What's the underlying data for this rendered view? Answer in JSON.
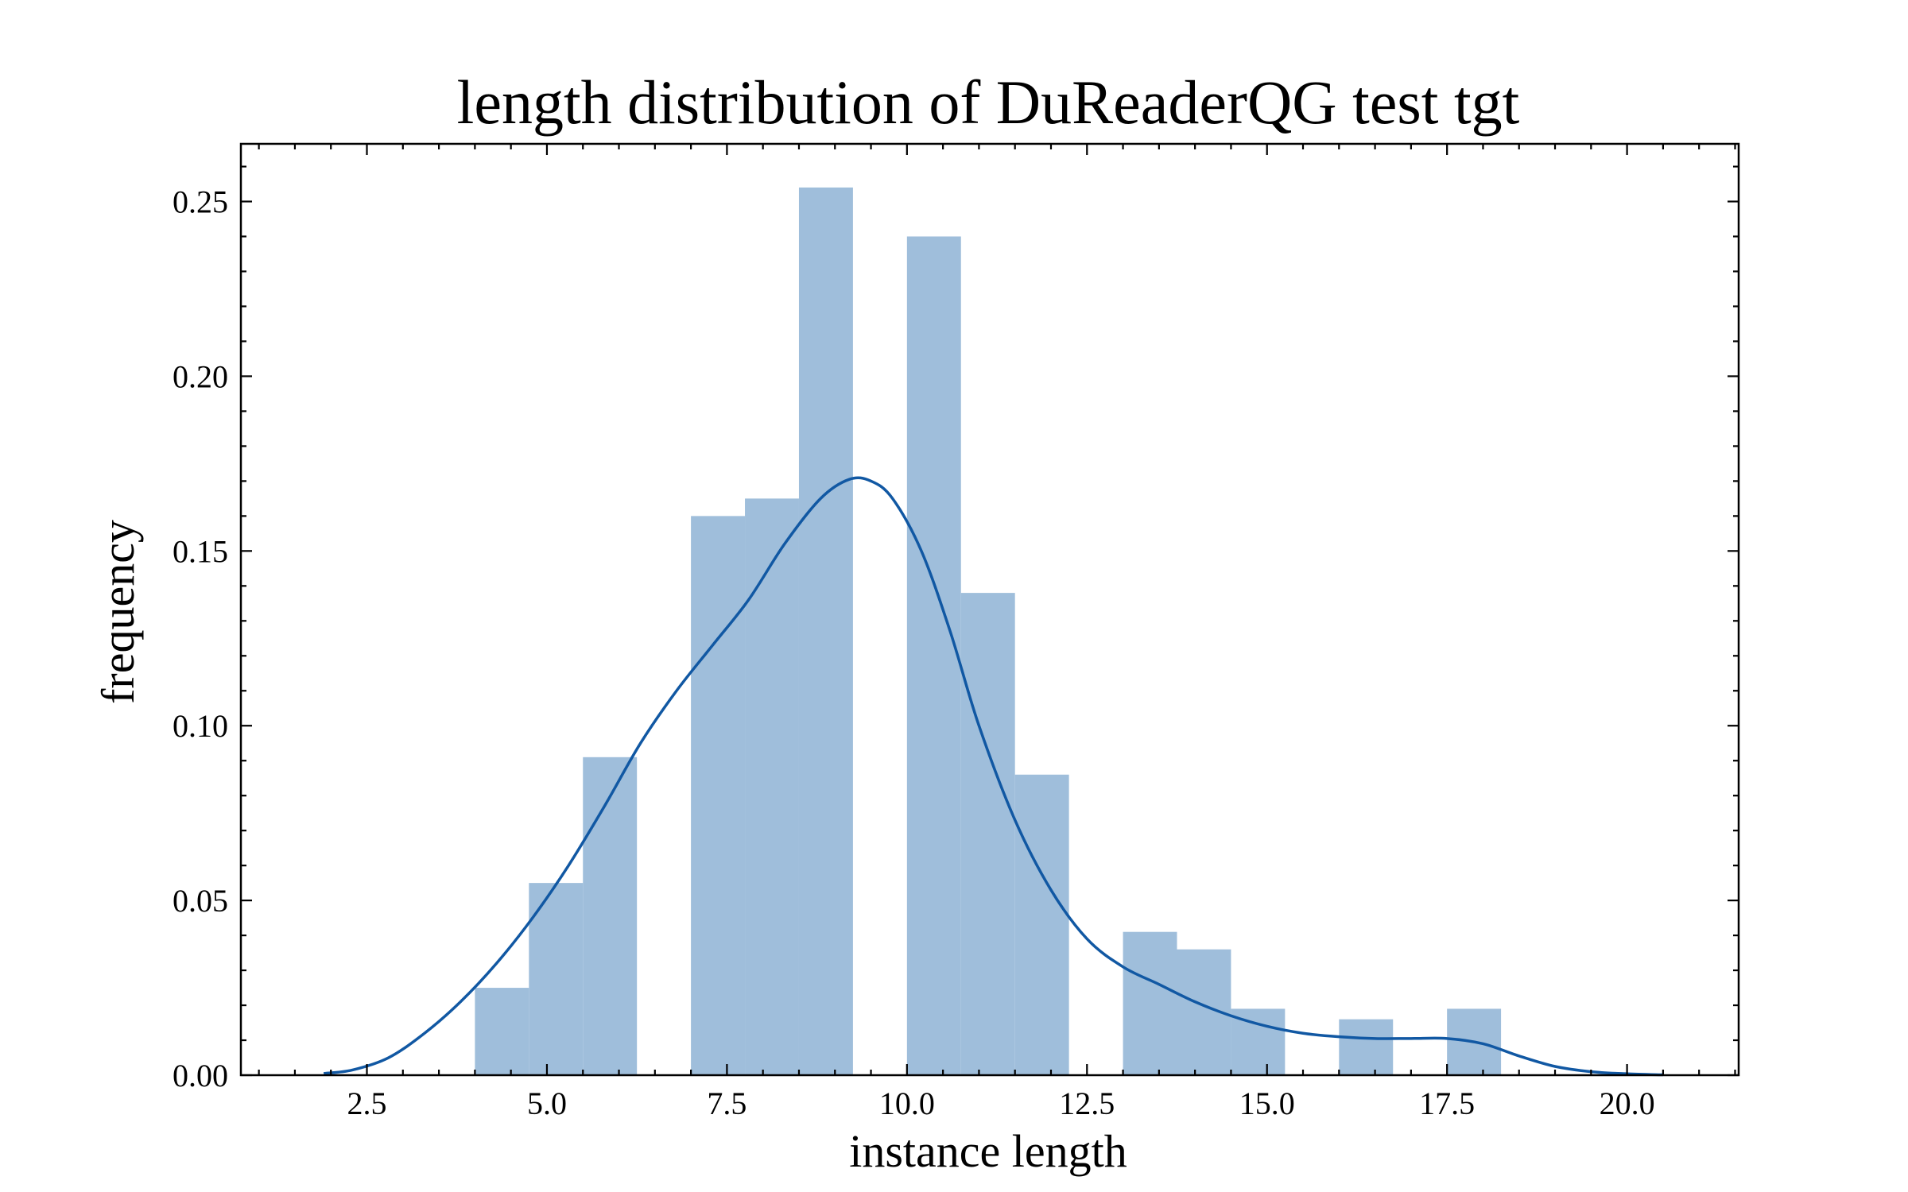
{
  "chart_data": {
    "type": "bar",
    "title": "length distribution of DuReaderQG test tgt",
    "xlabel": "instance length",
    "ylabel": "frequency",
    "xlim": [
      0.75,
      21.55
    ],
    "ylim": [
      0,
      0.2665
    ],
    "xticks": [
      2.5,
      5.0,
      7.5,
      10.0,
      12.5,
      15.0,
      17.5,
      20.0
    ],
    "xtick_labels": [
      "2.5",
      "5.0",
      "7.5",
      "10.0",
      "12.5",
      "15.0",
      "17.5",
      "20.0"
    ],
    "yticks": [
      0.0,
      0.05,
      0.1,
      0.15,
      0.2,
      0.25
    ],
    "ytick_labels": [
      "0.00",
      "0.05",
      "0.10",
      "0.15",
      "0.20",
      "0.25"
    ],
    "bars": [
      {
        "x0": 4.0,
        "x1": 4.75,
        "value": 0.025
      },
      {
        "x0": 4.75,
        "x1": 5.5,
        "value": 0.055
      },
      {
        "x0": 5.5,
        "x1": 6.25,
        "value": 0.091
      },
      {
        "x0": 7.0,
        "x1": 7.75,
        "value": 0.16
      },
      {
        "x0": 7.75,
        "x1": 8.5,
        "value": 0.165
      },
      {
        "x0": 8.5,
        "x1": 9.25,
        "value": 0.254
      },
      {
        "x0": 10.0,
        "x1": 10.75,
        "value": 0.24
      },
      {
        "x0": 10.75,
        "x1": 11.5,
        "value": 0.138
      },
      {
        "x0": 11.5,
        "x1": 12.25,
        "value": 0.086
      },
      {
        "x0": 13.0,
        "x1": 13.75,
        "value": 0.041
      },
      {
        "x0": 13.75,
        "x1": 14.5,
        "value": 0.036
      },
      {
        "x0": 14.5,
        "x1": 15.25,
        "value": 0.019
      },
      {
        "x0": 16.0,
        "x1": 16.75,
        "value": 0.016
      },
      {
        "x0": 17.5,
        "x1": 18.25,
        "value": 0.019
      }
    ],
    "kde": {
      "x": [
        1.9,
        2.3,
        2.8,
        3.3,
        3.8,
        4.3,
        4.8,
        5.3,
        5.8,
        6.3,
        6.8,
        7.3,
        7.8,
        8.3,
        8.8,
        9.2,
        9.5,
        9.8,
        10.2,
        10.6,
        11.0,
        11.5,
        12.0,
        12.5,
        13.0,
        13.5,
        14.0,
        14.5,
        15.0,
        15.5,
        16.0,
        16.5,
        17.0,
        17.5,
        18.0,
        18.5,
        19.0,
        19.5,
        20.0,
        20.5
      ],
      "y": [
        0.0005,
        0.0015,
        0.005,
        0.012,
        0.021,
        0.032,
        0.045,
        0.06,
        0.077,
        0.095,
        0.11,
        0.123,
        0.136,
        0.152,
        0.165,
        0.1705,
        0.17,
        0.165,
        0.15,
        0.127,
        0.1,
        0.073,
        0.053,
        0.039,
        0.031,
        0.026,
        0.021,
        0.017,
        0.014,
        0.012,
        0.011,
        0.0105,
        0.0105,
        0.0105,
        0.009,
        0.0055,
        0.0025,
        0.001,
        0.0004,
        0.0001
      ]
    },
    "colors": {
      "bar": "#9fbedb",
      "kde": "#1158a3"
    },
    "grid": false,
    "legend": false
  }
}
